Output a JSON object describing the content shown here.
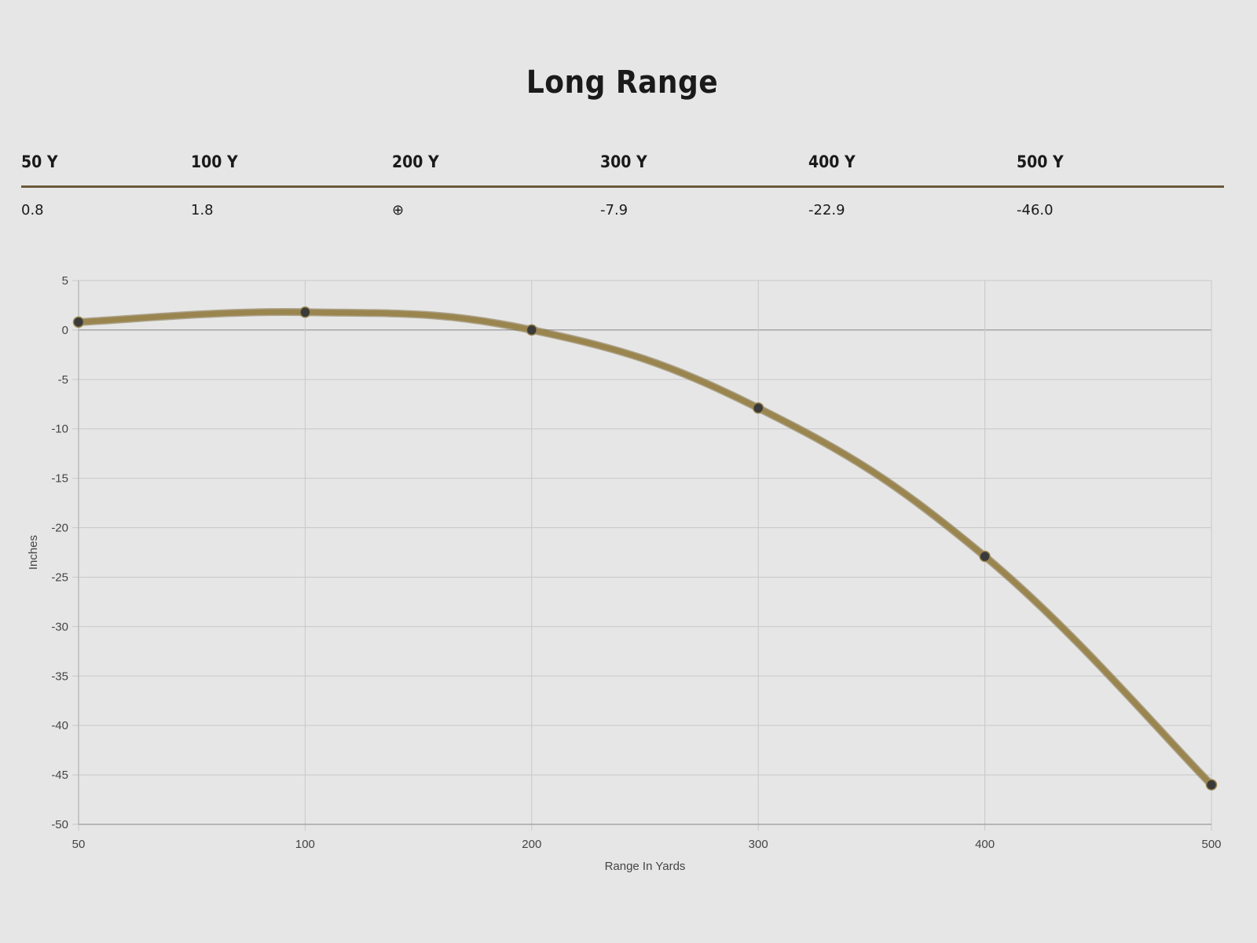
{
  "title": "Long Range",
  "range_table": {
    "headers": [
      "50 Y",
      "100 Y",
      "200 Y",
      "300 Y",
      "400 Y",
      "500 Y"
    ],
    "values": [
      "0.8",
      "1.8",
      "⊕",
      "-7.9",
      "-22.9",
      "-46.0"
    ]
  },
  "colors": {
    "background": "#e6e6e6",
    "line": "#9a854f",
    "point": "#3a3a3a",
    "rule": "#6b5a3a",
    "grid": "#c8c8c8"
  },
  "chart_data": {
    "type": "line",
    "title": "",
    "xlabel": "Range In Yards",
    "ylabel": "Inches",
    "categories": [
      "50",
      "100",
      "200",
      "300",
      "400",
      "500"
    ],
    "series": [
      {
        "values": [
          0.8,
          1.8,
          0,
          -7.9,
          -22.9,
          -46.0
        ]
      }
    ],
    "ylim": [
      -50,
      5
    ],
    "yticks": [
      5,
      0,
      -5,
      -10,
      -15,
      -20,
      -25,
      -30,
      -35,
      -40,
      -45,
      -50
    ],
    "grid": true,
    "legend": "none"
  }
}
